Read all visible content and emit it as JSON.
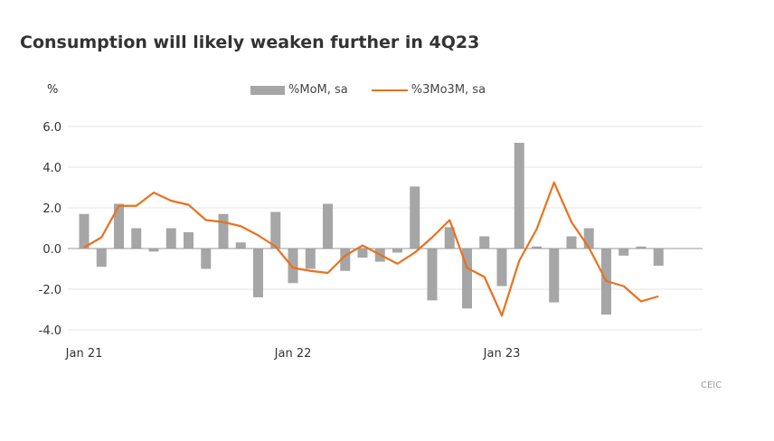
{
  "chart_data": {
    "type": "bar+line",
    "title": "Consumption will likely weaken further in 4Q23",
    "ylabel": "%",
    "ylim": [
      -4.0,
      6.0
    ],
    "yticks": [
      "6.0",
      "4.0",
      "2.0",
      "0.0",
      "-2.0",
      "-4.0"
    ],
    "ytick_values": [
      6,
      4,
      2,
      0,
      -2,
      -4
    ],
    "xtick_labels": [
      "Jan 21",
      "Jan 22",
      "Jan 23"
    ],
    "xtick_index": [
      0,
      12,
      24
    ],
    "categories": [
      "Jan 21",
      "Feb 21",
      "Mar 21",
      "Apr 21",
      "May 21",
      "Jun 21",
      "Jul 21",
      "Aug 21",
      "Sep 21",
      "Oct 21",
      "Nov 21",
      "Dec 21",
      "Jan 22",
      "Feb 22",
      "Mar 22",
      "Apr 22",
      "May 22",
      "Jun 22",
      "Jul 22",
      "Aug 22",
      "Sep 22",
      "Oct 22",
      "Nov 22",
      "Dec 22",
      "Jan 23",
      "Feb 23",
      "Mar 23",
      "Apr 23",
      "May 23",
      "Jun 23",
      "Jul 23",
      "Aug 23",
      "Sep 23",
      "Oct 23"
    ],
    "grid": true,
    "legend_position": "top",
    "series": [
      {
        "name": "%MoM, sa",
        "type": "bar",
        "color": "#a6a6a6",
        "values": [
          1.7,
          -0.9,
          2.2,
          1.0,
          -0.15,
          1.0,
          0.8,
          -1.0,
          1.7,
          0.3,
          -2.4,
          1.8,
          -1.7,
          -1.0,
          2.2,
          -1.1,
          -0.45,
          -0.65,
          -0.2,
          3.05,
          -2.55,
          1.05,
          -2.95,
          0.6,
          -1.85,
          5.2,
          0.1,
          -2.65,
          0.6,
          1.0,
          -3.25,
          -0.35,
          0.1,
          -0.85
        ]
      },
      {
        "name": "%3Mo3M, sa",
        "type": "line",
        "color": "#e8721f",
        "values": [
          0.05,
          0.55,
          2.1,
          2.1,
          2.75,
          2.35,
          2.15,
          1.4,
          1.3,
          1.1,
          0.65,
          0.1,
          -0.95,
          -1.1,
          -1.2,
          -0.35,
          0.15,
          -0.3,
          -0.75,
          -0.2,
          0.55,
          1.4,
          -0.95,
          -1.4,
          -3.3,
          -0.6,
          0.95,
          3.25,
          1.3,
          0.05,
          -1.6,
          -1.85,
          -2.6,
          -2.35
        ]
      }
    ],
    "source": "CEIC"
  }
}
